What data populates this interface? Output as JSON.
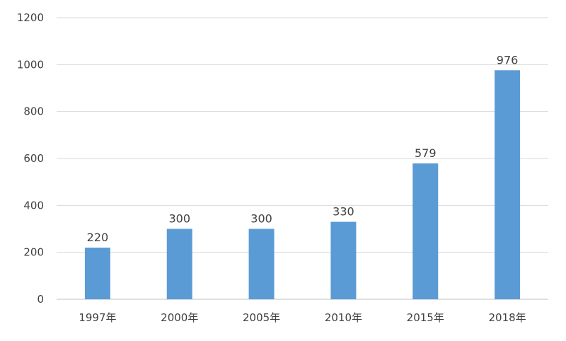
{
  "chart_data": {
    "type": "bar",
    "title": "",
    "xlabel": "",
    "ylabel": "",
    "categories": [
      "1997年",
      "2000年",
      "2005年",
      "2010年",
      "2015年",
      "2018年"
    ],
    "values": [
      220,
      300,
      300,
      330,
      579,
      976
    ],
    "data_labels": [
      "220",
      "300",
      "300",
      "330",
      "579",
      "976"
    ],
    "yticks": [
      "0",
      "200",
      "400",
      "600",
      "800",
      "1000",
      "1200"
    ],
    "ylim": [
      0,
      1200
    ],
    "grid": true,
    "legend": "none",
    "bar_color": "#5b9bd5"
  }
}
